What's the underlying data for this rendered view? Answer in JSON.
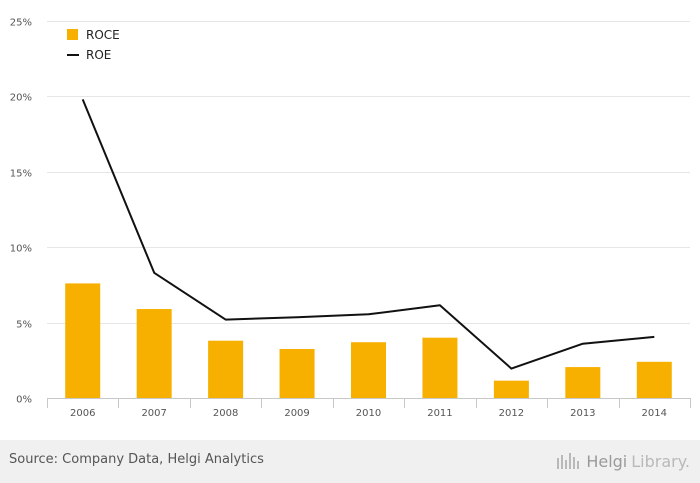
{
  "chart_data": {
    "type": "bar",
    "categories": [
      "2006",
      "2007",
      "2008",
      "2009",
      "2010",
      "2011",
      "2012",
      "2013",
      "2014"
    ],
    "series": [
      {
        "name": "ROCE",
        "type": "bar",
        "color": "#f7b000",
        "values": [
          7.6,
          5.9,
          3.8,
          3.25,
          3.7,
          4.0,
          1.15,
          2.05,
          2.4
        ]
      },
      {
        "name": "ROE",
        "type": "line",
        "color": "#111111",
        "values": [
          19.8,
          8.3,
          5.2,
          5.35,
          5.55,
          6.15,
          1.95,
          3.6,
          4.05
        ]
      }
    ],
    "ylim": [
      0,
      25
    ],
    "yticks": [
      "0%",
      "5%",
      "10%",
      "15%",
      "20%",
      "25%"
    ],
    "ytick_values": [
      0,
      5,
      10,
      15,
      20,
      25
    ],
    "grid": true,
    "legend": "top-left"
  },
  "footer": {
    "source": "Source: Company Data, Helgi Analytics",
    "brand_main": "Helgi",
    "brand_sub": "Library."
  }
}
